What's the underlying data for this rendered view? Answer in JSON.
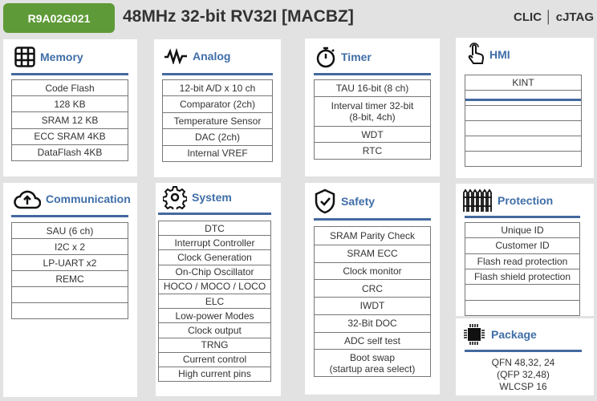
{
  "header": {
    "part_number": "R9A02G021",
    "title": "48MHz 32-bit RV32I [MACBZ]",
    "features": "CLIC │ cJTAG",
    "badge_color": "#5e9a37",
    "accent": "#44699f"
  },
  "panels": {
    "memory": {
      "label": "Memory",
      "icon": "grid-icon",
      "rows": [
        "Code Flash",
        "128 KB",
        "SRAM 12 KB",
        "ECC SRAM 4KB",
        "DataFlash 4KB"
      ]
    },
    "analog": {
      "label": "Analog",
      "icon": "waveform-icon",
      "rows": [
        "12-bit A/D x 10 ch",
        "Comparator (2ch)",
        "Temperature Sensor",
        "DAC (2ch)",
        "Internal VREF"
      ]
    },
    "timer": {
      "label": "Timer",
      "icon": "stopwatch-icon",
      "rows": [
        "TAU 16-bit (8 ch)",
        "Interval timer 32-bit\n(8-bit, 4ch)",
        "WDT",
        "RTC"
      ]
    },
    "hmi": {
      "label": "HMI",
      "icon": "touch-hand-icon",
      "rows": [
        "KINT",
        "",
        "",
        "",
        "",
        ""
      ]
    },
    "communication": {
      "label": "Communication",
      "icon": "cloud-upload-icon",
      "rows": [
        "SAU (6 ch)",
        "I2C x 2",
        "LP-UART x2",
        "REMC",
        "",
        ""
      ]
    },
    "system": {
      "label": "System",
      "icon": "gear-icon",
      "rows": [
        "DTC",
        "Interrupt Controller",
        "Clock Generation",
        "On-Chip Oscillator",
        "HOCO / MOCO / LOCO",
        "ELC",
        "Low-power Modes",
        "Clock output",
        "TRNG",
        "Current control",
        "High current pins"
      ]
    },
    "safety": {
      "label": "Safety",
      "icon": "shield-check-icon",
      "rows": [
        "SRAM Parity Check",
        "SRAM ECC",
        "Clock monitor",
        "CRC",
        "IWDT",
        "32-Bit DOC",
        "ADC self test",
        "Boot swap\n(startup area select)"
      ]
    },
    "protection": {
      "label": "Protection",
      "icon": "fence-icon",
      "rows": [
        "Unique ID",
        "Customer ID",
        "Flash read protection",
        "Flash shield protection",
        "",
        ""
      ]
    },
    "package": {
      "label": "Package",
      "icon": "chip-icon",
      "lines": [
        "QFN 48,32, 24",
        "(QFP 32,48)",
        "WLCSP 16"
      ]
    }
  }
}
